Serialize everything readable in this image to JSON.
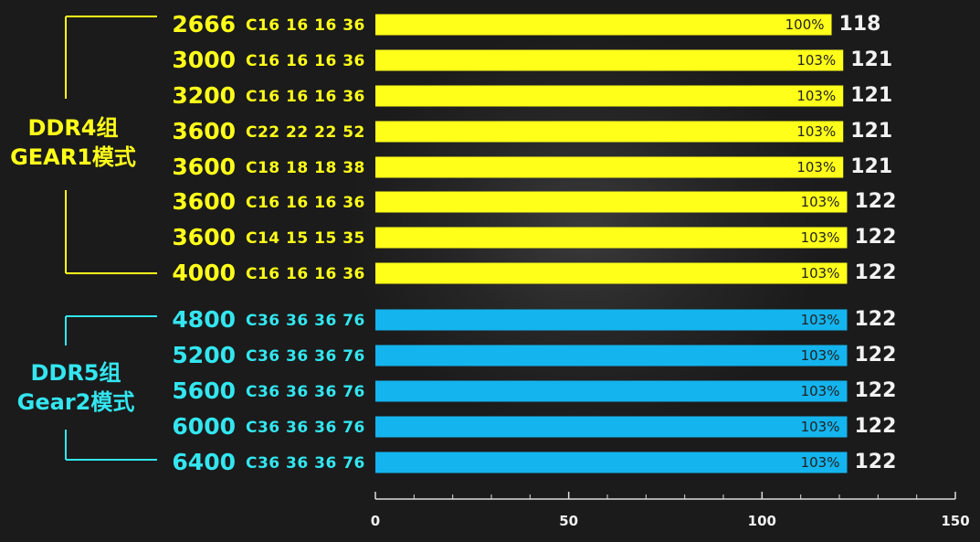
{
  "colors": {
    "ddr4": "#ffff1a",
    "ddr5": "#14b4ee",
    "ddr5_text": "#33e6f0",
    "axis": "#dddddd"
  },
  "groups": [
    {
      "label_line1": "DDR4组",
      "label_line2": "GEAR1模式"
    },
    {
      "label_line1": "DDR5组",
      "label_line2": "Gear2模式"
    }
  ],
  "chart_data": {
    "type": "bar",
    "orientation": "horizontal",
    "xlim": [
      0,
      150
    ],
    "x_ticks": [
      "0",
      "50",
      "100",
      "150"
    ],
    "rows": [
      {
        "speed": "2666",
        "timing": "C16 16 16 36",
        "group": 0,
        "value": 118,
        "value_label": "118",
        "pct": "100%"
      },
      {
        "speed": "3000",
        "timing": "C16 16 16 36",
        "group": 0,
        "value": 121,
        "value_label": "121",
        "pct": "103%"
      },
      {
        "speed": "3200",
        "timing": "C16 16 16 36",
        "group": 0,
        "value": 121,
        "value_label": "121",
        "pct": "103%"
      },
      {
        "speed": "3600",
        "timing": "C22 22 22 52",
        "group": 0,
        "value": 121,
        "value_label": "121",
        "pct": "103%"
      },
      {
        "speed": "3600",
        "timing": "C18 18 18 38",
        "group": 0,
        "value": 121,
        "value_label": "121",
        "pct": "103%"
      },
      {
        "speed": "3600",
        "timing": "C16 16 16 36",
        "group": 0,
        "value": 122,
        "value_label": "122",
        "pct": "103%"
      },
      {
        "speed": "3600",
        "timing": "C14 15 15 35",
        "group": 0,
        "value": 122,
        "value_label": "122",
        "pct": "103%"
      },
      {
        "speed": "4000",
        "timing": "C16 16 16 36",
        "group": 0,
        "value": 122,
        "value_label": "122",
        "pct": "103%"
      },
      {
        "speed": "4800",
        "timing": "C36 36 36 76",
        "group": 1,
        "value": 122,
        "value_label": "122",
        "pct": "103%"
      },
      {
        "speed": "5200",
        "timing": "C36 36 36 76",
        "group": 1,
        "value": 122,
        "value_label": "122",
        "pct": "103%"
      },
      {
        "speed": "5600",
        "timing": "C36 36 36 76",
        "group": 1,
        "value": 122,
        "value_label": "122",
        "pct": "103%"
      },
      {
        "speed": "6000",
        "timing": "C36 36 36 76",
        "group": 1,
        "value": 122,
        "value_label": "122",
        "pct": "103%"
      },
      {
        "speed": "6400",
        "timing": "C36 36 36 76",
        "group": 1,
        "value": 122,
        "value_label": "122",
        "pct": "103%"
      }
    ]
  }
}
